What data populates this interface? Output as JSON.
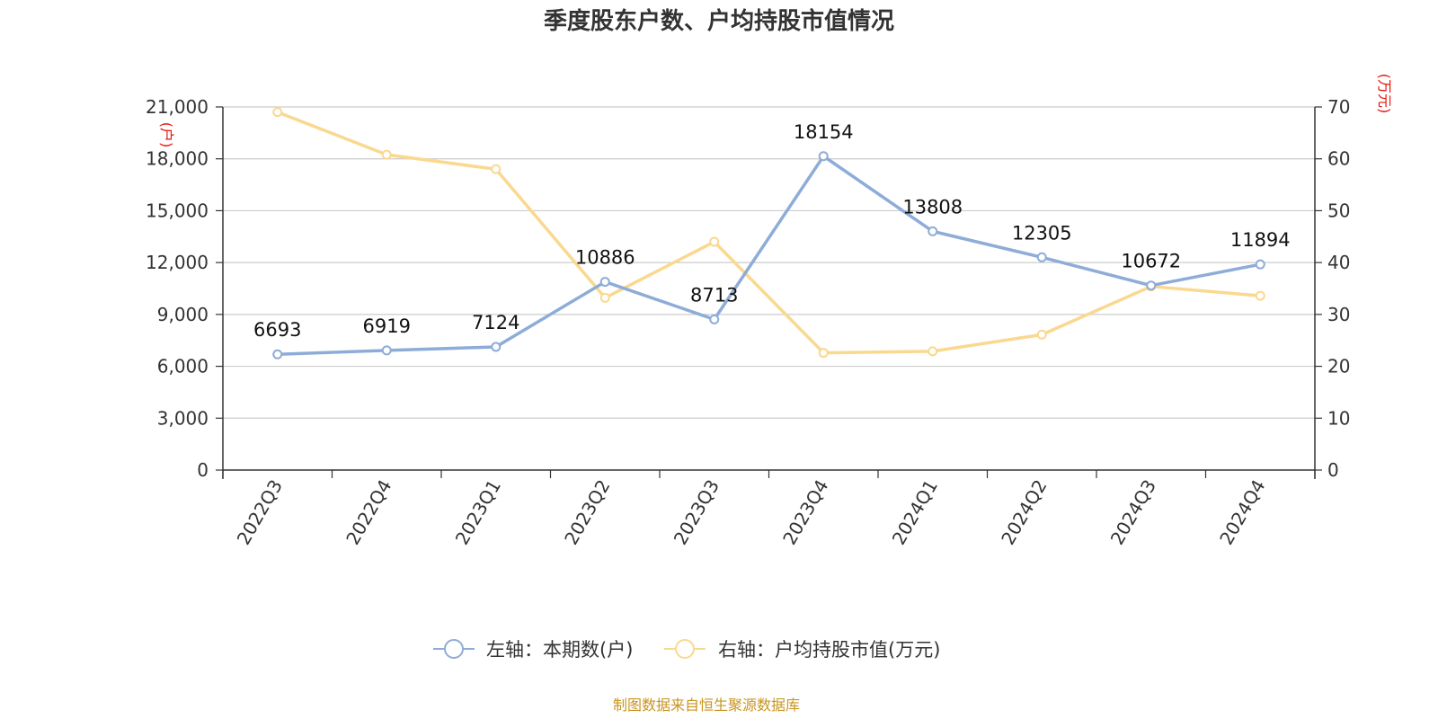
{
  "chart_data": {
    "type": "line",
    "title": "季度股东户数、户均持股市值情况",
    "categories": [
      "2022Q3",
      "2022Q4",
      "2023Q1",
      "2023Q2",
      "2023Q3",
      "2023Q4",
      "2024Q1",
      "2024Q2",
      "2024Q3",
      "2024Q4"
    ],
    "series": [
      {
        "name": "左轴：本期数(户)",
        "axis": "left",
        "color": "#8eacd8",
        "values": [
          6693,
          6919,
          7124,
          10886,
          8713,
          18154,
          13808,
          12305,
          10672,
          11894
        ],
        "show_labels": true
      },
      {
        "name": "右轴：户均持股市值(万元)",
        "axis": "right",
        "color": "#fad88f",
        "values": [
          69.0,
          60.8,
          58.0,
          33.2,
          44.0,
          22.6,
          22.9,
          26.1,
          35.4,
          33.6
        ],
        "show_labels": false
      }
    ],
    "y_left": {
      "unit": "(户)",
      "min": 0,
      "max": 21000,
      "ticks": [
        "0",
        "3,000",
        "6,000",
        "9,000",
        "12,000",
        "15,000",
        "18,000",
        "21,000"
      ]
    },
    "y_right": {
      "unit": "(万元)",
      "min": 0,
      "max": 70,
      "ticks": [
        "0",
        "10",
        "20",
        "30",
        "40",
        "50",
        "60",
        "70"
      ]
    },
    "grid": true,
    "legend_position": "bottom"
  },
  "source": "制图数据来自恒生聚源数据库"
}
